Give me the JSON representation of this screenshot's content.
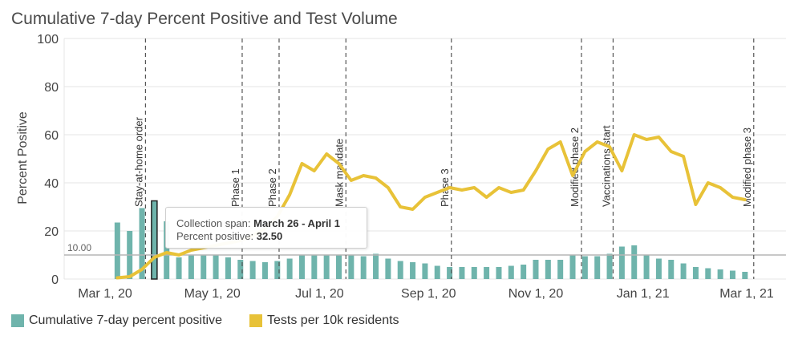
{
  "title": "Cumulative 7-day Percent Positive and Test Volume",
  "colors": {
    "bars": "#6fb4ac",
    "line": "#e8c238",
    "grid": "#e6e6e6",
    "event_line": "#555555",
    "reference_line": "#b5b5b5"
  },
  "legend": [
    {
      "label": "Cumulative 7-day percent positive",
      "color": "#6fb4ac"
    },
    {
      "label": "Tests per 10k residents",
      "color": "#e8c238"
    }
  ],
  "tooltip": {
    "span_label": "Collection span:",
    "span_value": "March 26 - April 1",
    "pct_label": "Percent positive:",
    "pct_value": "32.50"
  },
  "chart_data": {
    "type": "bar",
    "title": "Cumulative 7-day Percent Positive and Test Volume",
    "ylabel": "Percent Positive",
    "ylim": [
      0,
      100
    ],
    "yticks": [
      0,
      20,
      40,
      60,
      80,
      100
    ],
    "grid": true,
    "legend_position": "bottom-left",
    "xticks": [
      {
        "label": "Mar 1, 20",
        "date": "2020-03-01"
      },
      {
        "label": "May 1, 20",
        "date": "2020-05-01"
      },
      {
        "label": "Jul 1, 20",
        "date": "2020-07-01"
      },
      {
        "label": "Sep 1, 20",
        "date": "2020-09-01"
      },
      {
        "label": "Nov 1, 20",
        "date": "2020-11-01"
      },
      {
        "label": "Jan 1, 21",
        "date": "2021-01-01"
      },
      {
        "label": "Mar 1, 21",
        "date": "2021-03-01"
      }
    ],
    "reference_line": {
      "value": 10.0,
      "label": "10.00"
    },
    "highlighted_bar": "2020-03-29",
    "events": [
      {
        "label": "Stay-at-home order",
        "date": "2020-03-24"
      },
      {
        "label": "Phase 1",
        "date": "2020-05-18"
      },
      {
        "label": "Phase 2",
        "date": "2020-06-08"
      },
      {
        "label": "Mask mandate",
        "date": "2020-07-16"
      },
      {
        "label": "Phase 3",
        "date": "2020-09-14"
      },
      {
        "label": "Modified phase 2",
        "date": "2020-11-27"
      },
      {
        "label": "Vaccinations start",
        "date": "2020-12-15"
      },
      {
        "label": "Modified phase 3",
        "date": "2021-03-05"
      }
    ],
    "series": [
      {
        "name": "Cumulative 7-day percent positive",
        "type": "bar",
        "x": [
          "2020-03-08",
          "2020-03-15",
          "2020-03-22",
          "2020-03-29",
          "2020-04-05",
          "2020-04-12",
          "2020-04-19",
          "2020-04-26",
          "2020-05-03",
          "2020-05-10",
          "2020-05-17",
          "2020-05-24",
          "2020-05-31",
          "2020-06-07",
          "2020-06-14",
          "2020-06-21",
          "2020-06-28",
          "2020-07-05",
          "2020-07-12",
          "2020-07-19",
          "2020-07-26",
          "2020-08-02",
          "2020-08-09",
          "2020-08-16",
          "2020-08-23",
          "2020-08-30",
          "2020-09-06",
          "2020-09-13",
          "2020-09-20",
          "2020-09-27",
          "2020-10-04",
          "2020-10-11",
          "2020-10-18",
          "2020-10-25",
          "2020-11-01",
          "2020-11-08",
          "2020-11-15",
          "2020-11-22",
          "2020-11-29",
          "2020-12-06",
          "2020-12-13",
          "2020-12-20",
          "2020-12-27",
          "2021-01-03",
          "2021-01-10",
          "2021-01-17",
          "2021-01-24",
          "2021-01-31",
          "2021-02-07",
          "2021-02-14",
          "2021-02-21",
          "2021-02-28"
        ],
        "values": [
          23.5,
          20,
          29.5,
          32.5,
          24,
          9,
          10,
          10,
          10,
          9,
          8,
          7.5,
          7,
          7.5,
          8.5,
          10,
          10,
          10,
          10,
          10,
          9.5,
          10.5,
          8.5,
          7.5,
          7,
          6.5,
          5.5,
          5,
          5,
          5,
          5,
          5,
          5.5,
          6,
          8,
          8,
          8,
          10,
          9.5,
          9.5,
          10.5,
          13.5,
          14,
          10,
          8.5,
          8,
          6.5,
          5,
          4.5,
          4,
          3.5,
          3
        ]
      },
      {
        "name": "Tests per 10k residents",
        "type": "line",
        "x": [
          "2020-03-08",
          "2020-03-15",
          "2020-03-22",
          "2020-03-29",
          "2020-04-05",
          "2020-04-12",
          "2020-04-19",
          "2020-04-26",
          "2020-05-03",
          "2020-05-10",
          "2020-05-17",
          "2020-05-24",
          "2020-05-31",
          "2020-06-07",
          "2020-06-14",
          "2020-06-21",
          "2020-06-28",
          "2020-07-05",
          "2020-07-12",
          "2020-07-19",
          "2020-07-26",
          "2020-08-02",
          "2020-08-09",
          "2020-08-16",
          "2020-08-23",
          "2020-08-30",
          "2020-09-06",
          "2020-09-13",
          "2020-09-20",
          "2020-09-27",
          "2020-10-04",
          "2020-10-11",
          "2020-10-18",
          "2020-10-25",
          "2020-11-01",
          "2020-11-08",
          "2020-11-15",
          "2020-11-22",
          "2020-11-29",
          "2020-12-06",
          "2020-12-13",
          "2020-12-20",
          "2020-12-27",
          "2021-01-03",
          "2021-01-10",
          "2021-01-17",
          "2021-01-24",
          "2021-01-31",
          "2021-02-07",
          "2021-02-14",
          "2021-02-21",
          "2021-02-28"
        ],
        "values": [
          0.5,
          1,
          4,
          9,
          11,
          10,
          12,
          13,
          14,
          15,
          16,
          18,
          21,
          26,
          35,
          48,
          45,
          52,
          48,
          41,
          43,
          42,
          38,
          30,
          29,
          34,
          36,
          38,
          37,
          38,
          34,
          38,
          36,
          37,
          45,
          54,
          57,
          43,
          53,
          57,
          55,
          45,
          60,
          58,
          59,
          53,
          51,
          31,
          40,
          38,
          34,
          33
        ]
      }
    ]
  }
}
